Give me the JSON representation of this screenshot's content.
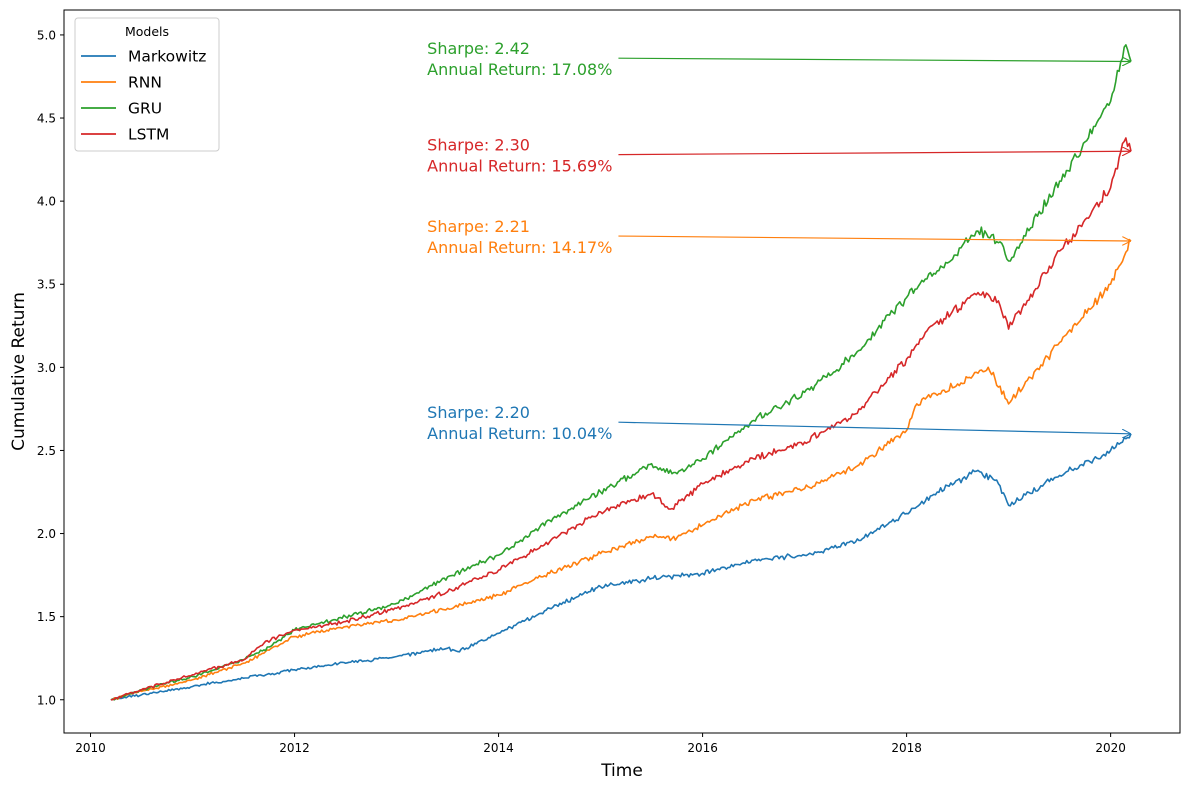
{
  "chart_data": {
    "type": "line",
    "title": "",
    "xlabel": "Time",
    "ylabel": "Cumulative Return",
    "xlim": [
      2009.74,
      2020.68
    ],
    "ylim": [
      0.8,
      5.15
    ],
    "x_ticks": [
      2010,
      2012,
      2014,
      2016,
      2018,
      2020
    ],
    "x_tick_labels": [
      "2010",
      "2012",
      "2014",
      "2016",
      "2018",
      "2020"
    ],
    "y_ticks": [
      1.0,
      1.5,
      2.0,
      2.5,
      3.0,
      3.5,
      4.0,
      4.5,
      5.0
    ],
    "y_tick_labels": [
      "1.0",
      "1.5",
      "2.0",
      "2.5",
      "3.0",
      "3.5",
      "4.0",
      "4.5",
      "5.0"
    ],
    "grid": false,
    "legend": {
      "title": "Models",
      "placement": "top-left",
      "entries": [
        "Markowitz",
        "RNN",
        "GRU",
        "LSTM"
      ]
    },
    "series": [
      {
        "name": "Markowitz",
        "color": "#1f77b4",
        "points": [
          [
            2010.2,
            1.0
          ],
          [
            2010.5,
            1.03
          ],
          [
            2011.0,
            1.08
          ],
          [
            2011.5,
            1.13
          ],
          [
            2012.0,
            1.18
          ],
          [
            2012.5,
            1.22
          ],
          [
            2013.0,
            1.26
          ],
          [
            2013.5,
            1.31
          ],
          [
            2013.6,
            1.29
          ],
          [
            2014.0,
            1.4
          ],
          [
            2014.5,
            1.55
          ],
          [
            2015.0,
            1.68
          ],
          [
            2015.5,
            1.73
          ],
          [
            2016.0,
            1.76
          ],
          [
            2016.5,
            1.84
          ],
          [
            2017.0,
            1.87
          ],
          [
            2017.5,
            1.95
          ],
          [
            2018.0,
            2.12
          ],
          [
            2018.3,
            2.25
          ],
          [
            2018.7,
            2.38
          ],
          [
            2018.9,
            2.3
          ],
          [
            2019.0,
            2.17
          ],
          [
            2019.5,
            2.35
          ],
          [
            2020.0,
            2.5
          ],
          [
            2020.2,
            2.6
          ]
        ]
      },
      {
        "name": "RNN",
        "color": "#ff7f0e",
        "points": [
          [
            2010.2,
            1.0
          ],
          [
            2010.5,
            1.05
          ],
          [
            2011.0,
            1.12
          ],
          [
            2011.5,
            1.22
          ],
          [
            2011.7,
            1.28
          ],
          [
            2012.0,
            1.38
          ],
          [
            2012.5,
            1.44
          ],
          [
            2013.0,
            1.48
          ],
          [
            2013.5,
            1.55
          ],
          [
            2014.0,
            1.63
          ],
          [
            2014.5,
            1.76
          ],
          [
            2015.0,
            1.88
          ],
          [
            2015.5,
            1.98
          ],
          [
            2015.7,
            1.97
          ],
          [
            2016.0,
            2.05
          ],
          [
            2016.5,
            2.2
          ],
          [
            2017.0,
            2.27
          ],
          [
            2017.5,
            2.4
          ],
          [
            2018.0,
            2.62
          ],
          [
            2018.1,
            2.78
          ],
          [
            2018.5,
            2.9
          ],
          [
            2018.8,
            3.0
          ],
          [
            2019.0,
            2.78
          ],
          [
            2019.5,
            3.15
          ],
          [
            2020.0,
            3.5
          ],
          [
            2020.2,
            3.76
          ]
        ]
      },
      {
        "name": "GRU",
        "color": "#2ca02c",
        "points": [
          [
            2010.2,
            1.0
          ],
          [
            2010.5,
            1.06
          ],
          [
            2011.0,
            1.14
          ],
          [
            2011.5,
            1.24
          ],
          [
            2011.7,
            1.3
          ],
          [
            2012.0,
            1.42
          ],
          [
            2012.5,
            1.5
          ],
          [
            2013.0,
            1.58
          ],
          [
            2013.5,
            1.74
          ],
          [
            2014.0,
            1.87
          ],
          [
            2014.5,
            2.08
          ],
          [
            2015.0,
            2.25
          ],
          [
            2015.5,
            2.42
          ],
          [
            2015.7,
            2.36
          ],
          [
            2016.0,
            2.45
          ],
          [
            2016.5,
            2.68
          ],
          [
            2017.0,
            2.85
          ],
          [
            2017.5,
            3.08
          ],
          [
            2018.0,
            3.42
          ],
          [
            2018.3,
            3.58
          ],
          [
            2018.7,
            3.82
          ],
          [
            2018.9,
            3.75
          ],
          [
            2019.0,
            3.64
          ],
          [
            2019.5,
            4.12
          ],
          [
            2020.0,
            4.6
          ],
          [
            2020.15,
            4.94
          ],
          [
            2020.2,
            4.84
          ]
        ]
      },
      {
        "name": "LSTM",
        "color": "#d62728",
        "points": [
          [
            2010.2,
            1.0
          ],
          [
            2010.5,
            1.06
          ],
          [
            2011.0,
            1.15
          ],
          [
            2011.5,
            1.24
          ],
          [
            2011.7,
            1.34
          ],
          [
            2012.0,
            1.42
          ],
          [
            2012.5,
            1.47
          ],
          [
            2013.0,
            1.55
          ],
          [
            2013.5,
            1.65
          ],
          [
            2014.0,
            1.78
          ],
          [
            2014.5,
            1.95
          ],
          [
            2015.0,
            2.13
          ],
          [
            2015.5,
            2.24
          ],
          [
            2015.7,
            2.15
          ],
          [
            2016.0,
            2.3
          ],
          [
            2016.5,
            2.45
          ],
          [
            2017.0,
            2.55
          ],
          [
            2017.5,
            2.72
          ],
          [
            2018.0,
            3.05
          ],
          [
            2018.2,
            3.22
          ],
          [
            2018.7,
            3.45
          ],
          [
            2018.9,
            3.4
          ],
          [
            2019.0,
            3.23
          ],
          [
            2019.5,
            3.7
          ],
          [
            2020.0,
            4.08
          ],
          [
            2020.15,
            4.38
          ],
          [
            2020.2,
            4.3
          ]
        ]
      }
    ],
    "annotations": [
      {
        "series": "Markowitz",
        "color": "#1f77b4",
        "line1": "Sharpe: 2.20",
        "line2": "Annual Return: 10.04%",
        "text_x": 2013.3,
        "text_y": 2.67,
        "target_x": 2020.2,
        "target_y": 2.6
      },
      {
        "series": "RNN",
        "color": "#ff7f0e",
        "line1": "Sharpe: 2.21",
        "line2": "Annual Return: 14.17%",
        "text_x": 2013.3,
        "text_y": 3.79,
        "target_x": 2020.2,
        "target_y": 3.76
      },
      {
        "series": "LSTM",
        "color": "#d62728",
        "line1": "Sharpe: 2.30",
        "line2": "Annual Return: 15.69%",
        "text_x": 2013.3,
        "text_y": 4.28,
        "target_x": 2020.2,
        "target_y": 4.3
      },
      {
        "series": "GRU",
        "color": "#2ca02c",
        "line1": "Sharpe: 2.42",
        "line2": "Annual Return: 17.08%",
        "text_x": 2013.3,
        "text_y": 4.86,
        "target_x": 2020.2,
        "target_y": 4.84
      }
    ]
  }
}
